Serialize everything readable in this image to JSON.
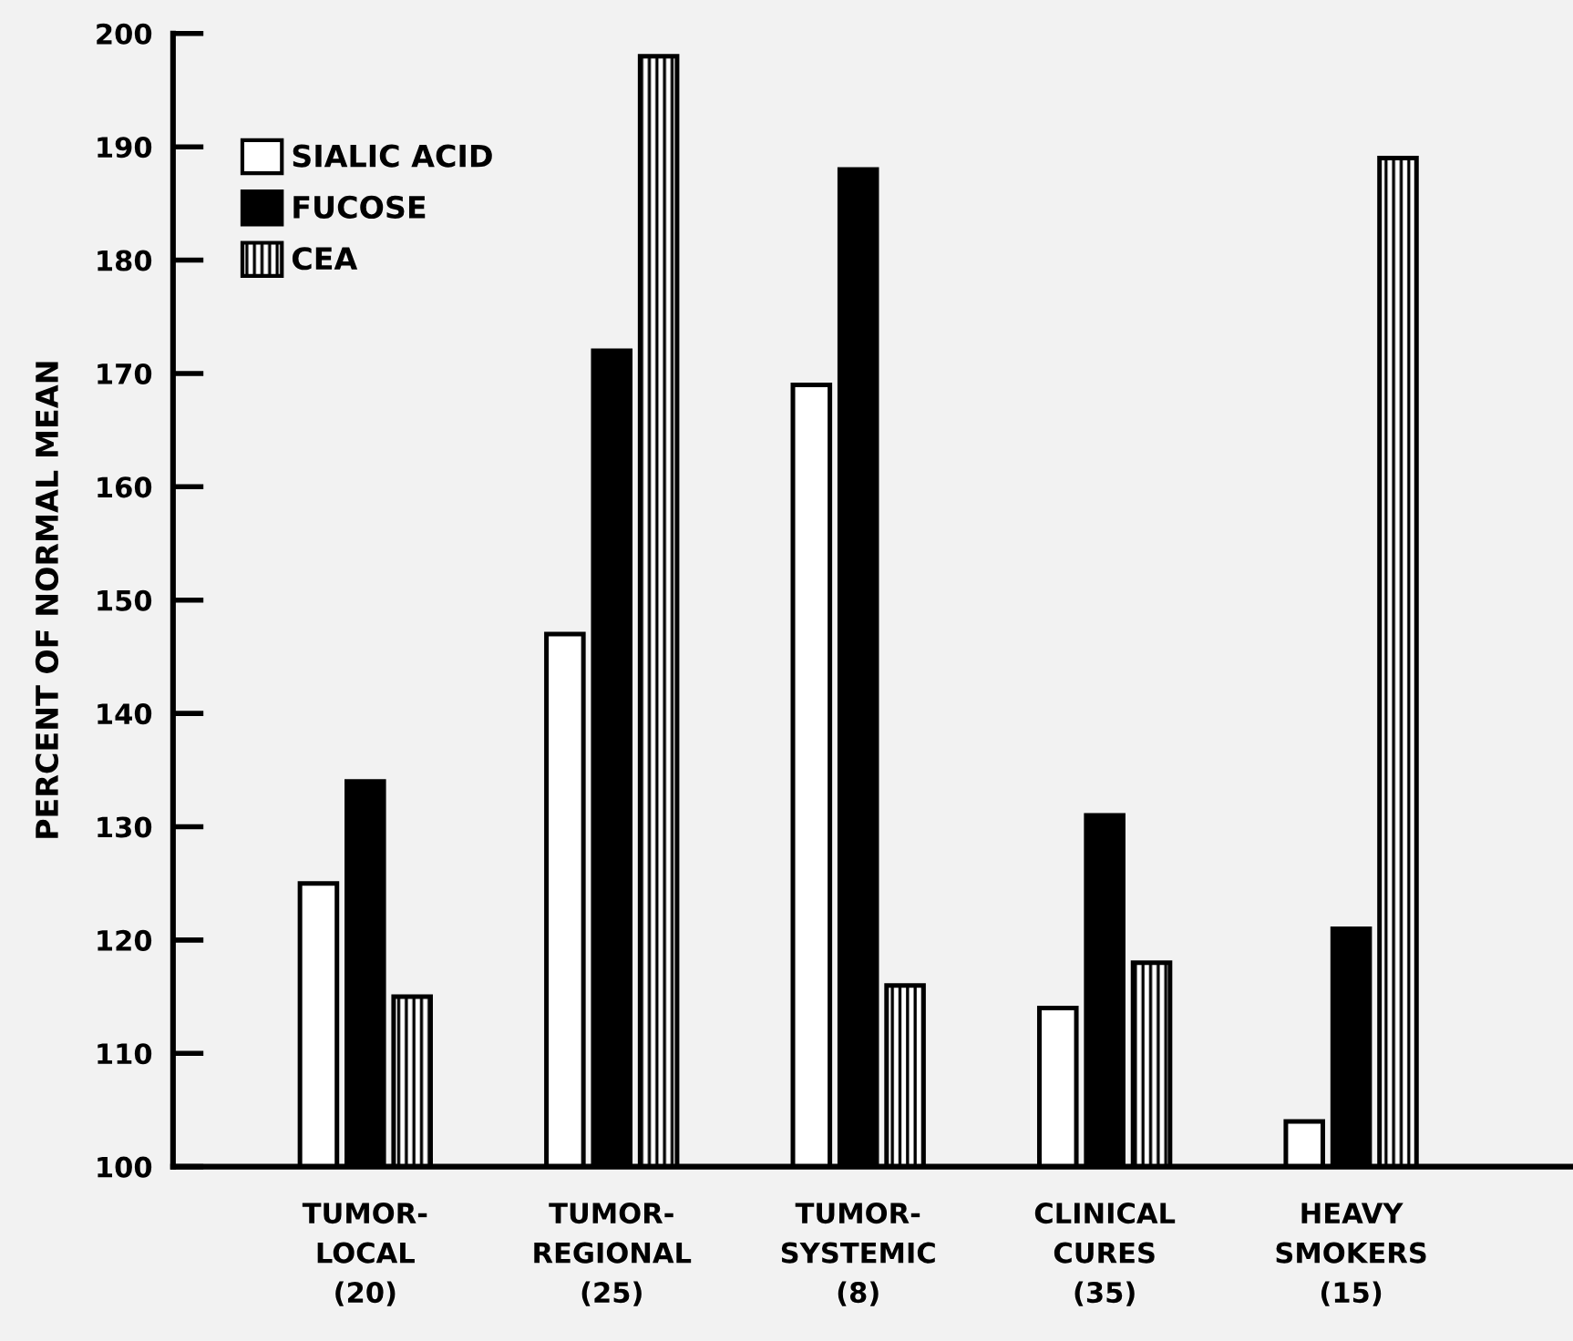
{
  "chart_data": {
    "type": "bar",
    "ylabel": "PERCENT OF NORMAL MEAN",
    "categories": [
      "TUMOR-\nLOCAL\n(20)",
      "TUMOR-\nREGIONAL\n(25)",
      "TUMOR-\nSYSTEMIC\n(8)",
      "CLINICAL\nCURES\n(35)",
      "HEAVY\nSMOKERS\n(15)"
    ],
    "series": [
      {
        "name": "SIALIC ACID",
        "color": "#ffffff",
        "values": [
          125,
          147,
          169,
          114,
          104
        ]
      },
      {
        "name": "FUCOSE",
        "color": "#000000",
        "values": [
          134,
          172,
          188,
          131,
          121
        ]
      },
      {
        "name": "CEA",
        "color": "#000000",
        "values": [
          115,
          198,
          116,
          118,
          189
        ]
      }
    ],
    "ylim": [
      100,
      200
    ],
    "yticks": [
      100,
      110,
      120,
      130,
      140,
      150,
      160,
      170,
      180,
      190,
      200
    ],
    "grid": false,
    "legend": "top left"
  }
}
